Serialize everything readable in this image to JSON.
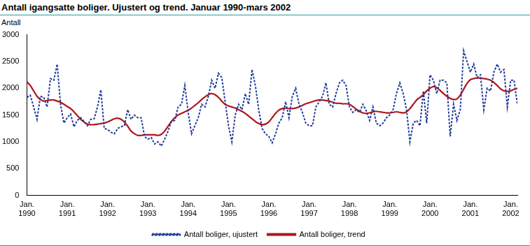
{
  "chart_data": {
    "type": "line",
    "title": "Antall igangsatte boliger. Ujustert og trend. Januar 1990-mars 2002",
    "ylabel": "Antall",
    "categories": [
      "Jan. 1990",
      null,
      null,
      null,
      null,
      null,
      null,
      null,
      null,
      null,
      null,
      null,
      "Jan. 1991",
      null,
      null,
      null,
      null,
      null,
      null,
      null,
      null,
      null,
      null,
      null,
      "Jan. 1992",
      null,
      null,
      null,
      null,
      null,
      null,
      null,
      null,
      null,
      null,
      null,
      "Jan. 1993",
      null,
      null,
      null,
      null,
      null,
      null,
      null,
      null,
      null,
      null,
      null,
      "Jan. 1994",
      null,
      null,
      null,
      null,
      null,
      null,
      null,
      null,
      null,
      null,
      null,
      "Jan. 1995",
      null,
      null,
      null,
      null,
      null,
      null,
      null,
      null,
      null,
      null,
      null,
      "Jan. 1996",
      null,
      null,
      null,
      null,
      null,
      null,
      null,
      null,
      null,
      null,
      null,
      "Jan. 1997",
      null,
      null,
      null,
      null,
      null,
      null,
      null,
      null,
      null,
      null,
      null,
      "Jan. 1998",
      null,
      null,
      null,
      null,
      null,
      null,
      null,
      null,
      null,
      null,
      null,
      "Jan. 1999",
      null,
      null,
      null,
      null,
      null,
      null,
      null,
      null,
      null,
      null,
      null,
      "Jan. 2000",
      null,
      null,
      null,
      null,
      null,
      null,
      null,
      null,
      null,
      null,
      null,
      "Jan. 2001",
      null,
      null,
      null,
      null,
      null,
      null,
      null,
      null,
      null,
      null,
      null,
      "Jan. 2002",
      null,
      null
    ],
    "series": [
      {
        "name": "Antall boliger, ujustert",
        "color": "#1f3c99",
        "line_style": "dashed",
        "values": [
          1830,
          1870,
          1650,
          1420,
          1850,
          1830,
          1650,
          2180,
          2150,
          2450,
          1700,
          1350,
          1450,
          1520,
          1280,
          1400,
          1450,
          1380,
          1300,
          1420,
          1430,
          1650,
          1970,
          1250,
          1230,
          1180,
          1150,
          1250,
          1280,
          1300,
          1600,
          1420,
          1500,
          1450,
          1450,
          1100,
          1050,
          1080,
          960,
          1000,
          920,
          1050,
          1200,
          1380,
          1400,
          1650,
          1700,
          2050,
          1550,
          1150,
          1300,
          1450,
          1700,
          1650,
          1850,
          2150,
          2000,
          2280,
          2200,
          1750,
          1300,
          1000,
          1500,
          1700,
          1600,
          1900,
          1700,
          2350,
          2050,
          1600,
          1250,
          1150,
          1100,
          980,
          1150,
          1350,
          1450,
          1750,
          1450,
          1850,
          2000,
          1700,
          1550,
          1350,
          1300,
          1300,
          1650,
          1750,
          1850,
          2100,
          1700,
          1650,
          1900,
          2100,
          2150,
          2050,
          1650,
          1550,
          1600,
          1550,
          1700,
          1580,
          1400,
          1650,
          1350,
          1300,
          1350,
          1450,
          1500,
          1600,
          1900,
          2100,
          1900,
          1600,
          1000,
          1350,
          1400,
          1300,
          1950,
          1350,
          2250,
          2150,
          1900,
          2150,
          2150,
          2100,
          1100,
          1700,
          1400,
          1600,
          2700,
          2500,
          2300,
          2450,
          2200,
          2250,
          1600,
          2000,
          1950,
          2300,
          2450,
          2300,
          2350,
          1650,
          2150,
          2150,
          1700
        ]
      },
      {
        "name": "Antall boliger, trend",
        "color": "#b0151b",
        "line_style": "solid",
        "values": [
          2120,
          2050,
          1950,
          1850,
          1790,
          1760,
          1770,
          1780,
          1780,
          1760,
          1740,
          1700,
          1660,
          1620,
          1560,
          1490,
          1420,
          1370,
          1330,
          1320,
          1320,
          1330,
          1340,
          1350,
          1370,
          1400,
          1430,
          1440,
          1420,
          1370,
          1290,
          1200,
          1150,
          1120,
          1120,
          1130,
          1130,
          1130,
          1130,
          1120,
          1140,
          1200,
          1290,
          1380,
          1450,
          1500,
          1530,
          1560,
          1590,
          1630,
          1680,
          1730,
          1790,
          1840,
          1880,
          1900,
          1880,
          1830,
          1760,
          1700,
          1670,
          1650,
          1630,
          1600,
          1570,
          1530,
          1480,
          1430,
          1380,
          1340,
          1320,
          1330,
          1370,
          1450,
          1530,
          1590,
          1620,
          1630,
          1620,
          1620,
          1630,
          1650,
          1680,
          1710,
          1730,
          1750,
          1770,
          1780,
          1780,
          1770,
          1760,
          1740,
          1720,
          1720,
          1710,
          1710,
          1700,
          1660,
          1610,
          1570,
          1540,
          1530,
          1540,
          1560,
          1570,
          1560,
          1550,
          1540,
          1540,
          1550,
          1560,
          1550,
          1540,
          1560,
          1620,
          1700,
          1780,
          1830,
          1880,
          1950,
          2000,
          2030,
          2010,
          1960,
          1900,
          1850,
          1810,
          1790,
          1800,
          1870,
          1980,
          2090,
          2160,
          2180,
          2190,
          2190,
          2180,
          2170,
          2150,
          2110,
          2050,
          1990,
          1950,
          1940,
          1950,
          1980,
          2000
        ]
      }
    ],
    "ylim": [
      0,
      3000
    ],
    "yticks": [
      0,
      500,
      1000,
      1500,
      2000,
      2500,
      3000
    ],
    "grid": false,
    "legend": "bottom"
  }
}
